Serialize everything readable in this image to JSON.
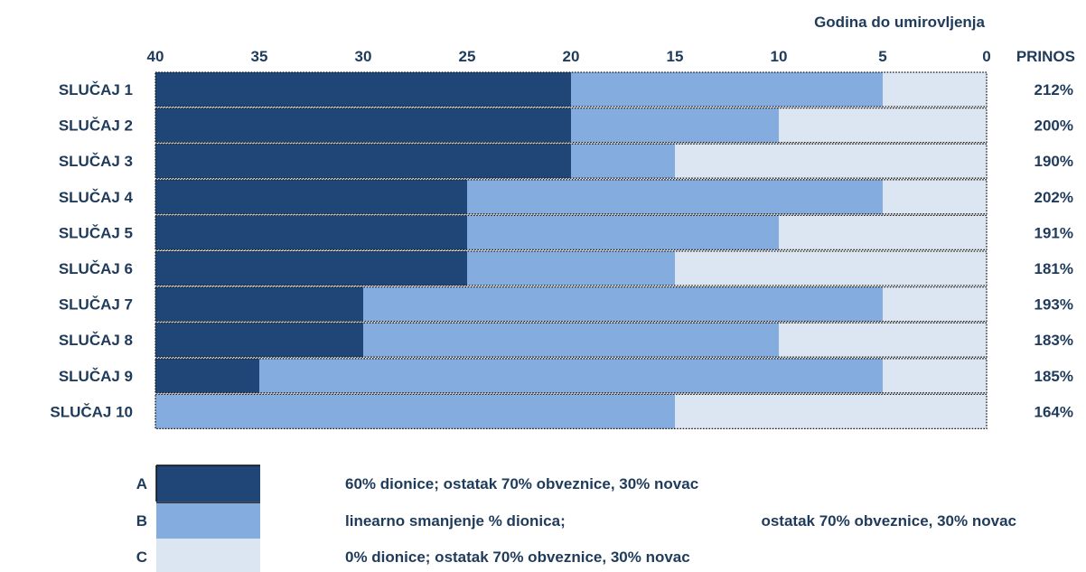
{
  "chart_data": {
    "type": "bar",
    "orientation": "horizontal-stacked",
    "x_axis_title": "Godina do umirovljenja",
    "x_ticks": [
      40,
      35,
      30,
      25,
      20,
      15,
      10,
      5,
      0
    ],
    "xlim": [
      40,
      0
    ],
    "x_reversed": true,
    "return_header": "PRINOS",
    "series": [
      {
        "name": "A",
        "description": "60% dionice; ostatak 70% obveznice, 30% novac",
        "color": "#1f4677"
      },
      {
        "name": "B",
        "description": "linearno smanjenje % dionica;",
        "description_cont": "ostatak 70% obveznice, 30% novac",
        "color": "#85acdf"
      },
      {
        "name": "C",
        "description": "0% dionice;  ostatak 70% obveznice, 30% novac",
        "color": "#dce5f2"
      }
    ],
    "cases": [
      {
        "label": "SLUČAJ 1",
        "A": [
          40,
          20
        ],
        "B": [
          20,
          5
        ],
        "C": [
          5,
          0
        ],
        "return": "212%"
      },
      {
        "label": "SLUČAJ 2",
        "A": [
          40,
          20
        ],
        "B": [
          20,
          10
        ],
        "C": [
          10,
          0
        ],
        "return": "200%"
      },
      {
        "label": "SLUČAJ 3",
        "A": [
          40,
          20
        ],
        "B": [
          20,
          15
        ],
        "C": [
          15,
          0
        ],
        "return": "190%"
      },
      {
        "label": "SLUČAJ 4",
        "A": [
          40,
          25
        ],
        "B": [
          25,
          5
        ],
        "C": [
          5,
          0
        ],
        "return": "202%"
      },
      {
        "label": "SLUČAJ 5",
        "A": [
          40,
          25
        ],
        "B": [
          25,
          10
        ],
        "C": [
          10,
          0
        ],
        "return": "191%"
      },
      {
        "label": "SLUČAJ 6",
        "A": [
          40,
          25
        ],
        "B": [
          25,
          15
        ],
        "C": [
          15,
          0
        ],
        "return": "181%"
      },
      {
        "label": "SLUČAJ 7",
        "A": [
          40,
          30
        ],
        "B": [
          30,
          5
        ],
        "C": [
          5,
          0
        ],
        "return": "193%"
      },
      {
        "label": "SLUČAJ 8",
        "A": [
          40,
          30
        ],
        "B": [
          30,
          10
        ],
        "C": [
          10,
          0
        ],
        "return": "183%"
      },
      {
        "label": "SLUČAJ 9",
        "A": [
          40,
          35
        ],
        "B": [
          35,
          5
        ],
        "C": [
          5,
          0
        ],
        "return": "185%"
      },
      {
        "label": "SLUČAJ 10",
        "A": null,
        "B": [
          40,
          15
        ],
        "C": [
          15,
          0
        ],
        "return": "164%"
      }
    ]
  }
}
